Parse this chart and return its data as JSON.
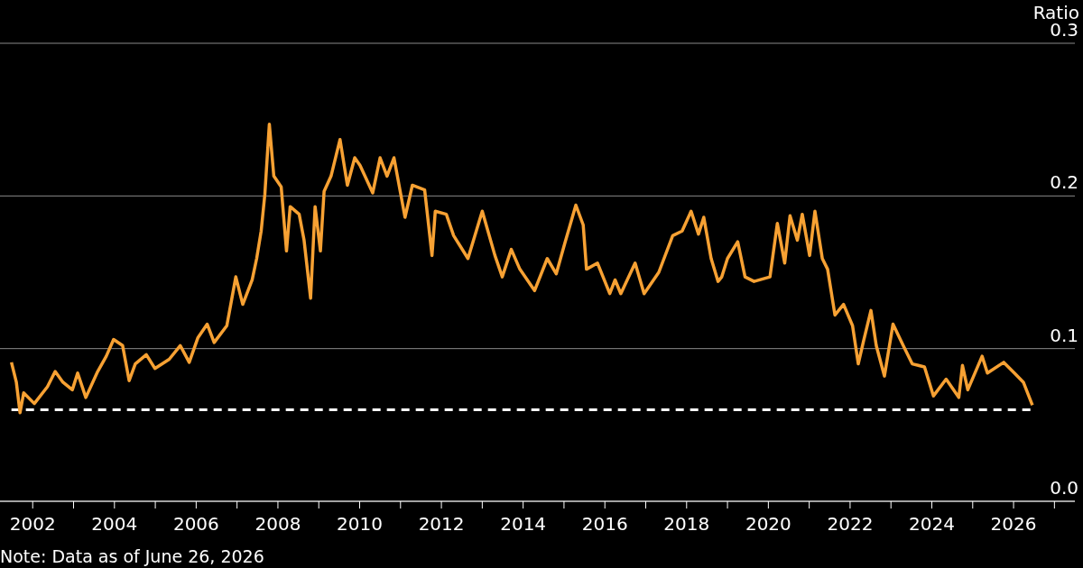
{
  "chart_data": {
    "type": "line",
    "ylabel": "Ratio",
    "annotations": [
      "Note: Data as of June 26, 2026"
    ],
    "x": [
      2001.48,
      2001.6,
      2001.69,
      2001.78,
      2002.04,
      2002.36,
      2002.55,
      2002.74,
      2002.97,
      2003.1,
      2003.3,
      2003.59,
      2003.8,
      2003.98,
      2004.2,
      2004.36,
      2004.51,
      2004.78,
      2004.99,
      2005.34,
      2005.61,
      2005.83,
      2006.04,
      2006.27,
      2006.44,
      2006.75,
      2006.97,
      2007.14,
      2007.37,
      2007.48,
      2007.59,
      2007.68,
      2007.79,
      2007.9,
      2008.08,
      2008.21,
      2008.3,
      2008.52,
      2008.64,
      2008.8,
      2008.91,
      2009.04,
      2009.13,
      2009.3,
      2009.52,
      2009.7,
      2009.88,
      2010.01,
      2010.32,
      2010.5,
      2010.67,
      2010.84,
      2011.11,
      2011.29,
      2011.59,
      2011.77,
      2011.85,
      2012.12,
      2012.3,
      2012.65,
      2013.0,
      2013.31,
      2013.49,
      2013.71,
      2013.92,
      2014.28,
      2014.59,
      2014.81,
      2015.02,
      2015.29,
      2015.47,
      2015.55,
      2015.82,
      2016.12,
      2016.25,
      2016.39,
      2016.74,
      2016.96,
      2017.32,
      2017.66,
      2017.89,
      2018.11,
      2018.29,
      2018.42,
      2018.6,
      2018.77,
      2018.86,
      2019.0,
      2019.25,
      2019.43,
      2019.65,
      2020.04,
      2020.22,
      2020.4,
      2020.53,
      2020.71,
      2020.83,
      2021.01,
      2021.14,
      2021.32,
      2021.45,
      2021.63,
      2021.84,
      2022.06,
      2022.2,
      2022.33,
      2022.51,
      2022.64,
      2022.84,
      2023.05,
      2023.3,
      2023.52,
      2023.82,
      2024.04,
      2024.35,
      2024.66,
      2024.75,
      2024.88,
      2025.23,
      2025.36,
      2025.76,
      2026.02,
      2026.24,
      2026.46
    ],
    "series": [
      {
        "color": "#f7a133",
        "values": [
          0.091,
          0.078,
          0.058,
          0.071,
          0.064,
          0.075,
          0.085,
          0.078,
          0.073,
          0.084,
          0.068,
          0.085,
          0.095,
          0.106,
          0.102,
          0.079,
          0.09,
          0.096,
          0.087,
          0.093,
          0.102,
          0.091,
          0.107,
          0.116,
          0.104,
          0.115,
          0.147,
          0.129,
          0.145,
          0.159,
          0.177,
          0.201,
          0.247,
          0.213,
          0.206,
          0.164,
          0.193,
          0.188,
          0.171,
          0.133,
          0.193,
          0.164,
          0.203,
          0.213,
          0.237,
          0.207,
          0.225,
          0.22,
          0.202,
          0.225,
          0.213,
          0.225,
          0.186,
          0.207,
          0.204,
          0.161,
          0.19,
          0.188,
          0.174,
          0.159,
          0.19,
          0.161,
          0.147,
          0.165,
          0.152,
          0.138,
          0.159,
          0.149,
          0.169,
          0.194,
          0.181,
          0.152,
          0.156,
          0.136,
          0.145,
          0.136,
          0.156,
          0.136,
          0.15,
          0.174,
          0.177,
          0.19,
          0.175,
          0.186,
          0.159,
          0.144,
          0.147,
          0.159,
          0.17,
          0.147,
          0.144,
          0.147,
          0.182,
          0.156,
          0.187,
          0.171,
          0.188,
          0.161,
          0.19,
          0.159,
          0.152,
          0.122,
          0.129,
          0.115,
          0.09,
          0.105,
          0.125,
          0.102,
          0.082,
          0.116,
          0.102,
          0.09,
          0.088,
          0.069,
          0.08,
          0.068,
          0.089,
          0.073,
          0.095,
          0.084,
          0.091,
          0.084,
          0.078,
          0.063
        ]
      }
    ],
    "xlim": [
      2001.2,
      2027.5
    ],
    "xticks": [
      2002,
      {
        "value": 2003,
        "label": null
      },
      2004,
      {
        "value": 2005,
        "label": null
      },
      2006,
      {
        "value": 2007,
        "label": null
      },
      2008,
      {
        "value": 2009,
        "label": null
      },
      2010,
      {
        "value": 2011,
        "label": null
      },
      2012,
      {
        "value": 2013,
        "label": null
      },
      2014,
      {
        "value": 2015,
        "label": null
      },
      2016,
      {
        "value": 2017,
        "label": null
      },
      2018,
      {
        "value": 2019,
        "label": null
      },
      2020,
      {
        "value": 2021,
        "label": null
      },
      2022,
      {
        "value": 2023,
        "label": null
      },
      2024,
      {
        "value": 2025,
        "label": null
      },
      2026,
      {
        "value": 2027,
        "label": null
      }
    ],
    "ylim": [
      0,
      0.3
    ],
    "yticks": [
      {
        "value": 0,
        "label": "0.0"
      },
      {
        "value": 0.1,
        "label": "0.1"
      },
      {
        "value": 0.2,
        "label": "0.2"
      },
      {
        "value": 0.3,
        "label": "0.3"
      }
    ],
    "ref_lines": [
      {
        "axis": "y",
        "value": 0.06,
        "color": "#ffffff",
        "line_style": "dashed"
      }
    ],
    "grid": "y",
    "legend": false,
    "marker": "none",
    "line_style": "solid"
  }
}
